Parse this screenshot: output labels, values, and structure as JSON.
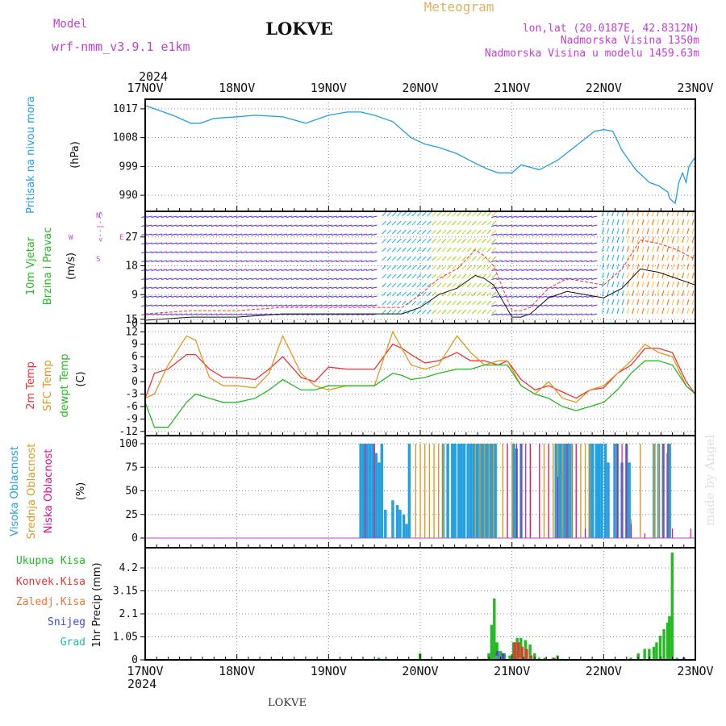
{
  "header": {
    "model_label": "Model",
    "model_name": "wrf-nmm_v3.9.1  e1km",
    "station_title": "LOKVE",
    "meteogram_label": "Meteogram",
    "lonlat": "lon,lat (20.0187E, 42.8312N)",
    "altitude": "Nadmorska Visina 1350m",
    "model_altitude": "Nadmorska Visina u modelu 1459.63m",
    "year_top": "2024",
    "year_bottom": "2024",
    "footer_station": "LOKVE",
    "credit": "made by Angel"
  },
  "colors": {
    "pressure": "#22a0e0",
    "model": "#c040d0",
    "meteogram": "#e0b060",
    "wind_label": "#22bb22",
    "temp_2m": "#ee3333",
    "temp_sfc": "#dd9922",
    "temp_dew": "#22bb22",
    "cloud_high": "#22a0e0",
    "cloud_mid": "#dd9922",
    "cloud_low": "#dd1188",
    "precip_total": "#22bb22",
    "precip_conv": "#ee3333",
    "precip_frz": "#ee7733",
    "precip_snow": "#4444dd",
    "precip_grad": "#22bbaa"
  },
  "time_axis": {
    "labels": [
      "17NOV",
      "18NOV",
      "19NOV",
      "20NOV",
      "21NOV",
      "22NOV",
      "23NOV"
    ]
  },
  "panels": {
    "pressure": {
      "ylabel_main": "Pritisak na nivou mora",
      "ylabel_unit": "(hPa)",
      "ticks": [
        "1017",
        "1008",
        "999",
        "990"
      ]
    },
    "wind": {
      "ylabel_a": "10m Vjetar",
      "ylabel_b": "Brzina i Pravac",
      "ylabel_unit": "(m/s)",
      "ticks": [
        "27",
        "18",
        "9",
        "0"
      ],
      "compass_w": "W",
      "compass_arrow": "<--|-->",
      "compass_n": "N",
      "compass_s": "S",
      "compass_e": "E"
    },
    "temperature": {
      "ylabel_a": "2m Temp",
      "ylabel_b": "SFC Temp",
      "ylabel_c": "dewpt Temp",
      "ylabel_unit": "(C)",
      "ticks": [
        "15",
        "12",
        "9",
        "6",
        "3",
        "0",
        "-3",
        "-6",
        "-9",
        "-12"
      ]
    },
    "cloud": {
      "ylabel_a": "Visoka Oblacnost",
      "ylabel_b": "Srednja Oblacnost",
      "ylabel_c": "Niska Oblacnost",
      "ylabel_unit": "(%)",
      "ticks": [
        "100",
        "75",
        "50",
        "25",
        "0"
      ]
    },
    "precip": {
      "legend_total": "Ukupna Kisa",
      "legend_conv": "Konvek.Kisa",
      "legend_frz": "Zaledj.Kisa",
      "legend_snow": "Snijeg",
      "legend_grad": "Grad",
      "ylabel_unit": "1hr Precip (mm)",
      "ticks": [
        "4.2",
        "3.15",
        "2.1",
        "1.05",
        "0"
      ]
    }
  },
  "chart_data": [
    {
      "type": "line",
      "name": "pressure",
      "ylim": [
        985,
        1020
      ],
      "x_days": [
        0,
        0.1,
        0.3,
        0.5,
        0.6,
        0.75,
        1.0,
        1.2,
        1.5,
        1.75,
        2.0,
        2.2,
        2.35,
        2.5,
        2.7,
        2.9,
        3.05,
        3.2,
        3.4,
        3.6,
        3.75,
        3.85,
        4.0,
        4.1,
        4.3,
        4.5,
        4.7,
        4.9,
        5.0,
        5.1,
        5.2,
        5.35,
        5.5,
        5.6,
        5.7,
        5.72,
        5.78,
        5.82,
        5.86,
        5.9,
        5.93,
        6.0
      ],
      "values": [
        1018,
        1017,
        1015,
        1012.5,
        1012.5,
        1014,
        1014.5,
        1015,
        1014.5,
        1012.5,
        1015,
        1016,
        1016,
        1015,
        1013,
        1008,
        1006,
        1005,
        1003,
        1000,
        998,
        997,
        997,
        999.5,
        998,
        1001,
        1005.5,
        1010,
        1010.5,
        1010,
        1004,
        998,
        994,
        993,
        991,
        989,
        987.5,
        994,
        997,
        994,
        999,
        1002
      ]
    },
    {
      "type": "line",
      "name": "wind",
      "ylim": [
        0,
        35
      ],
      "x_days": [
        0,
        0.5,
        1.0,
        1.5,
        2.0,
        2.5,
        2.8,
        3.0,
        3.2,
        3.4,
        3.6,
        3.7,
        3.8,
        4.0,
        4.1,
        4.2,
        4.4,
        4.6,
        4.8,
        5.0,
        5.2,
        5.4,
        5.6,
        5.8,
        6.0
      ],
      "series": [
        {
          "values": [
            1,
            2,
            2,
            3,
            3,
            3,
            3,
            5,
            9,
            11,
            15,
            14,
            12,
            2,
            2,
            3,
            8,
            10,
            9,
            8,
            11,
            17,
            16,
            14,
            12
          ]
        },
        {
          "values": [
            3,
            4,
            4,
            5,
            5,
            5,
            5,
            9,
            14,
            17,
            23,
            21,
            18,
            4,
            4,
            5,
            11,
            14,
            13,
            12,
            17,
            26,
            25,
            23,
            20
          ]
        }
      ]
    },
    {
      "type": "line",
      "name": "temperature",
      "ylim": [
        -13,
        14
      ],
      "x_days": [
        0,
        0.1,
        0.25,
        0.45,
        0.55,
        0.7,
        0.85,
        1.0,
        1.2,
        1.35,
        1.5,
        1.7,
        1.85,
        2.0,
        2.2,
        2.35,
        2.5,
        2.7,
        2.8,
        2.9,
        3.05,
        3.2,
        3.4,
        3.55,
        3.7,
        3.85,
        3.95,
        4.1,
        4.25,
        4.4,
        4.55,
        4.7,
        4.85,
        5.0,
        5.15,
        5.3,
        5.45,
        5.6,
        5.75,
        5.9,
        6.0
      ],
      "series": [
        {
          "values": [
            -4,
            2,
            3,
            6.5,
            6.5,
            3,
            1,
            1,
            0.5,
            3,
            6,
            1,
            0,
            3.5,
            3,
            3,
            3,
            9,
            8,
            6.5,
            4.5,
            5,
            7,
            5,
            5,
            4,
            5,
            0.5,
            -2,
            -1,
            -2.5,
            -4,
            -2,
            -1.5,
            2,
            4,
            8,
            8,
            7,
            0,
            -3
          ]
        },
        {
          "values": [
            -4,
            -3,
            4,
            11,
            10,
            1,
            -1,
            -1,
            -1.5,
            2,
            11,
            2,
            -1,
            -2,
            -1,
            -1,
            -1,
            12,
            8,
            4,
            3,
            4,
            11,
            7,
            4,
            5,
            5,
            -1,
            -3,
            0,
            -4,
            -5,
            -2,
            -1,
            2,
            5,
            9,
            7,
            6,
            -1,
            -3
          ]
        },
        {
          "values": [
            -5,
            -11,
            -11,
            -5,
            -3,
            -4,
            -5,
            -5,
            -4,
            -2,
            0.5,
            -2,
            -2,
            -1,
            -1,
            -1,
            -1,
            2,
            1.5,
            0.5,
            1,
            2,
            3,
            3,
            4,
            4,
            4,
            -1,
            -3,
            -4,
            -6,
            -7,
            -6,
            -5,
            -2,
            2,
            5,
            5,
            4,
            -1,
            -3
          ]
        }
      ]
    },
    {
      "type": "bar",
      "name": "cloud",
      "ylim": [
        0,
        100
      ],
      "series": [
        {
          "name": "high",
          "x_days": [
            2.35,
            2.38,
            2.42,
            2.45,
            2.48,
            2.52,
            2.55,
            2.58,
            2.62,
            2.7,
            2.75,
            2.78,
            2.82,
            2.85,
            2.88,
            3.25,
            3.3,
            3.35,
            3.38,
            3.42,
            3.45,
            3.48,
            3.52,
            3.55,
            3.58,
            3.62,
            3.65,
            3.68,
            3.72,
            3.75,
            3.78,
            3.82,
            4.02,
            4.05,
            4.1,
            4.48,
            4.52,
            4.55,
            4.58,
            4.62,
            4.65,
            4.85,
            4.88,
            4.92,
            4.95,
            4.98,
            5.02,
            5.05,
            5.12,
            5.15,
            5.2,
            5.25,
            5.28,
            5.55,
            5.6,
            5.65,
            5.7,
            5.72
          ],
          "values": [
            100,
            100,
            100,
            100,
            100,
            90,
            80,
            100,
            30,
            40,
            35,
            30,
            25,
            15,
            100,
            100,
            100,
            100,
            100,
            100,
            100,
            100,
            100,
            100,
            100,
            100,
            100,
            100,
            100,
            100,
            100,
            100,
            100,
            95,
            100,
            100,
            100,
            100,
            100,
            100,
            100,
            100,
            100,
            100,
            100,
            100,
            100,
            80,
            100,
            100,
            80,
            100,
            80,
            100,
            100,
            100,
            90,
            100
          ]
        },
        {
          "name": "mid",
          "x_days": [
            2.4,
            2.5,
            2.95,
            3.0,
            3.05,
            3.1,
            3.15,
            3.2,
            3.25,
            3.6,
            3.65,
            3.7,
            3.75,
            3.8,
            3.9,
            3.95,
            4.0,
            4.2,
            4.3,
            4.35,
            4.4,
            4.45,
            4.5,
            4.55,
            4.6,
            4.65,
            4.7,
            4.75,
            4.8,
            4.85,
            5.15,
            5.3,
            5.4,
            5.55,
            5.6,
            5.65,
            5.7
          ],
          "values": [
            100,
            100,
            100,
            100,
            100,
            100,
            100,
            100,
            100,
            100,
            100,
            100,
            100,
            100,
            100,
            100,
            100,
            100,
            100,
            100,
            100,
            100,
            100,
            100,
            100,
            100,
            100,
            100,
            100,
            100,
            100,
            20,
            100,
            100,
            100,
            100,
            100
          ]
        },
        {
          "name": "low",
          "x_days": [
            2.4,
            2.5,
            3.95,
            4.05,
            4.1,
            4.15,
            4.2,
            4.3,
            4.4,
            4.5,
            4.6,
            4.7,
            4.8,
            5.15,
            5.2,
            5.25,
            5.3,
            5.45,
            5.65,
            5.7,
            5.75,
            5.95
          ],
          "values": [
            100,
            100,
            100,
            100,
            100,
            100,
            100,
            100,
            100,
            65,
            100,
            100,
            10,
            100,
            100,
            100,
            15,
            5,
            100,
            100,
            10,
            10
          ]
        }
      ]
    },
    {
      "type": "bar",
      "name": "precip",
      "ylim": [
        0,
        4.9
      ],
      "series": [
        {
          "name": "total",
          "x_days": [
            2.55,
            3.0,
            3.35,
            3.7,
            3.75,
            3.78,
            3.81,
            3.84,
            3.88,
            3.92,
            3.98,
            4.02,
            4.06,
            4.1,
            4.15,
            4.2,
            4.25,
            4.3,
            4.36,
            4.45,
            4.5,
            4.55,
            5.3,
            5.38,
            5.45,
            5.5,
            5.55,
            5.58,
            5.62,
            5.66,
            5.7,
            5.72,
            5.75
          ],
          "values": [
            0.1,
            0.3,
            0.05,
            0.05,
            0.3,
            1.6,
            2.8,
            0.8,
            0.4,
            0.3,
            0.2,
            0.8,
            1.0,
            1.0,
            0.9,
            0.7,
            0.3,
            0.1,
            0.1,
            0.1,
            0.2,
            0.05,
            0.1,
            0.3,
            0.5,
            0.5,
            0.6,
            0.8,
            1.1,
            1.4,
            1.7,
            2.0,
            4.9
          ]
        },
        {
          "name": "convective",
          "x_days": [
            3.82,
            4.02,
            4.06,
            4.1,
            4.15,
            4.2,
            4.45
          ],
          "values": [
            0.3,
            0.8,
            0.8,
            0.6,
            0.5,
            0.2,
            0.1
          ]
        },
        {
          "name": "freezing",
          "x_days": [
            4.1
          ],
          "values": [
            0.1
          ]
        },
        {
          "name": "snow",
          "x_days": [
            3.82,
            3.88,
            5.85
          ],
          "values": [
            0.4,
            0.3,
            0.1
          ]
        },
        {
          "name": "graupel",
          "x_days": [
            3.86,
            5.83
          ],
          "values": [
            0.2,
            0.1
          ]
        }
      ]
    }
  ]
}
